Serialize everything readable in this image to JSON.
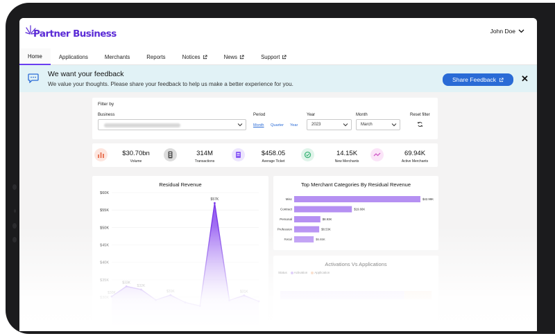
{
  "app": {
    "logo_text": "Partner Business",
    "user_name": "John Doe"
  },
  "nav": {
    "items": [
      {
        "label": "Home",
        "active": true,
        "external": false
      },
      {
        "label": "Applications",
        "active": false,
        "external": false
      },
      {
        "label": "Merchants",
        "active": false,
        "external": false
      },
      {
        "label": "Reports",
        "active": false,
        "external": false
      },
      {
        "label": "Notices",
        "active": false,
        "external": true
      },
      {
        "label": "News",
        "active": false,
        "external": true
      },
      {
        "label": "Support",
        "active": false,
        "external": true
      }
    ]
  },
  "banner": {
    "title": "We want your feedback",
    "text": "We value your thoughts. Please share your feedback to help us make a better experience for you.",
    "button_label": "Share Feedback"
  },
  "filter": {
    "title": "Filter by",
    "business_label": "Business",
    "period_label": "Period",
    "period_options": [
      "Month",
      "Quarter",
      "Year"
    ],
    "year_label": "Year",
    "year_value": "2023",
    "month_label": "Month",
    "month_value": "March",
    "reset_label": "Reset filter"
  },
  "stats": [
    {
      "value": "$30.70bn",
      "label": "Volume",
      "icon": "bar-chart-icon",
      "color": "#e9785a",
      "bg": "#fde6df"
    },
    {
      "value": "314M",
      "label": "Transactions",
      "icon": "card-stack-icon",
      "color": "#555555",
      "bg": "#dcdcdc"
    },
    {
      "value": "$458.05",
      "label": "Average Ticket",
      "icon": "receipt-icon",
      "color": "#8b5cf6",
      "bg": "#ece5fd"
    },
    {
      "value": "14.15K",
      "label": "New Merchants",
      "icon": "merchant-icon",
      "color": "#3fb67a",
      "bg": "#e0f4ea"
    },
    {
      "value": "69.94K",
      "label": "Active Merchants",
      "icon": "activity-icon",
      "color": "#d05cc7",
      "bg": "#fbe4f8"
    }
  ],
  "charts": {
    "revenue_title": "Residual Revenue",
    "categories_title": "Top Merchant Categories By Residual Revenue",
    "activations_title": "Activations Vs Applications",
    "activations_legend": {
      "status_label": "Status",
      "items": [
        "Activation",
        "Application"
      ]
    }
  },
  "chart_data": [
    {
      "type": "area",
      "title": "Residual Revenue",
      "xlabel": "",
      "ylabel": "",
      "y_ticks": [
        "$60K",
        "$55K",
        "$50K",
        "$45K",
        "$40K",
        "$35K",
        "$30K"
      ],
      "ylim": [
        30,
        60
      ],
      "x": [
        1,
        2,
        3,
        4,
        5,
        6,
        7,
        8,
        9,
        10,
        11
      ],
      "values": [
        30.2,
        33.1,
        32.2,
        29.2,
        30.6,
        28.5,
        27.5,
        57.0,
        29.1,
        30.5,
        28.8
      ],
      "labels": [
        "$30K",
        "$33K",
        "$32K",
        "",
        "$31K",
        "",
        "",
        "$57K",
        "",
        "$31K",
        ""
      ],
      "color": "#8a4bf0"
    },
    {
      "type": "bar",
      "orientation": "horizontal",
      "title": "Top Merchant Categories By Residual Revenue",
      "categories": [
        "Misc",
        "Contract",
        "Personal",
        "Profession",
        "Retail"
      ],
      "values": [
        42.99,
        19.66,
        8.93,
        8.53,
        6.65
      ],
      "labels": [
        "$42.99K",
        "$19.66K",
        "$8.93K",
        "$8.53K",
        "$6.65K"
      ],
      "xlim": [
        0,
        43
      ],
      "color": "#b590f2"
    },
    {
      "type": "bar",
      "orientation": "horizontal-stacked",
      "title": "Activations Vs Applications",
      "categories": [
        ""
      ],
      "series": [
        {
          "name": "Activation",
          "values": [
            82
          ],
          "color": "#e7dafc"
        },
        {
          "name": "Application",
          "values": [
            18
          ],
          "color": "#fbe6d6"
        }
      ]
    }
  ]
}
